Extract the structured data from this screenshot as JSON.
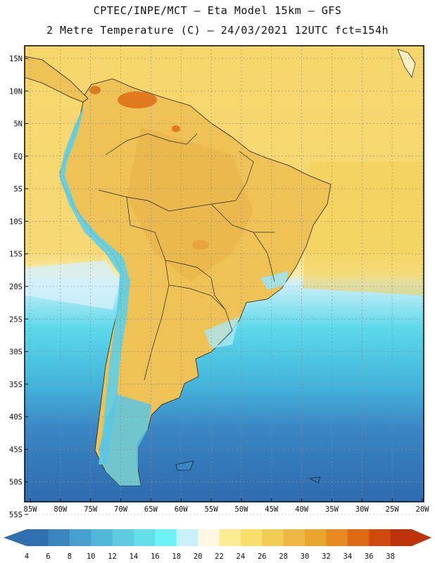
{
  "title": {
    "line1": "CPTEC/INPE/MCT –  Eta Model 15km – GFS",
    "line2": "2 Metre Temperature (C) – 24/03/2021 12UTC fct=154h"
  },
  "map": {
    "lat_labels": [
      "15N",
      "10N",
      "5N",
      "EQ",
      "5S",
      "10S",
      "15S",
      "20S",
      "25S",
      "30S",
      "35S",
      "40S",
      "45S",
      "50S",
      "55S"
    ],
    "lon_labels": [
      "85W",
      "80W",
      "75W",
      "70W",
      "65W",
      "60W",
      "55W",
      "50W",
      "45W",
      "40W",
      "35W",
      "30W",
      "25W",
      "20W"
    ],
    "lat_range": [
      15,
      -55
    ],
    "lon_range": [
      -85,
      -20
    ],
    "land_color": "#f0c656",
    "ocean_warm_color": "#f6d46a",
    "ocean_cool_color": "#4fd6ea",
    "ocean_cold_color": "#3a7dc0"
  },
  "colorbar": {
    "labels": [
      "4",
      "6",
      "8",
      "10",
      "12",
      "14",
      "16",
      "18",
      "20",
      "22",
      "24",
      "26",
      "28",
      "30",
      "32",
      "34",
      "36",
      "38"
    ],
    "colors": [
      "#2e6fb0",
      "#3a84bf",
      "#45a0cf",
      "#52b6d9",
      "#5ecbe0",
      "#63dde8",
      "#6ef2f7",
      "#c8f1fb",
      "#fdf6e0",
      "#fbec94",
      "#f8de6a",
      "#f2cd54",
      "#ebb843",
      "#e8a62e",
      "#e88a21",
      "#df6a16",
      "#cf4a0e",
      "#bb3308"
    ]
  }
}
